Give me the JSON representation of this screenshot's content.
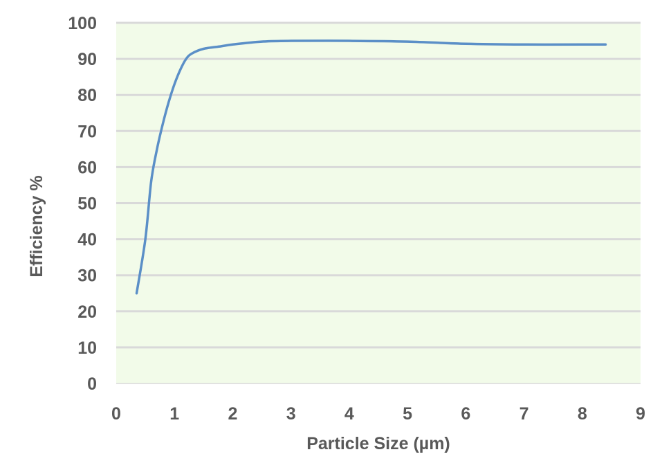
{
  "chart_data": {
    "type": "line",
    "title": "",
    "xlabel": "Particle Size (µm)",
    "ylabel": "Efficiency %",
    "xlim": [
      0,
      9
    ],
    "ylim": [
      0,
      100
    ],
    "xticks": [
      "0",
      "1",
      "2",
      "3",
      "4",
      "5",
      "6",
      "7",
      "8",
      "9"
    ],
    "yticks": [
      "0",
      "10",
      "20",
      "30",
      "40",
      "50",
      "60",
      "70",
      "80",
      "90",
      "100"
    ],
    "grid": true,
    "legend": "none",
    "series": [
      {
        "color": "#5b8fc7",
        "smooth": true,
        "x": [
          0.35,
          0.5,
          0.6,
          0.7,
          0.8,
          0.9,
          1.0,
          1.1,
          1.2,
          1.3,
          1.5,
          1.8,
          2.0,
          2.5,
          3.0,
          4.0,
          5.0,
          6.0,
          7.0,
          8.0,
          8.4
        ],
        "y": [
          25,
          40,
          56,
          65,
          72,
          78,
          83,
          87,
          90,
          91.5,
          92.8,
          93.5,
          94,
          94.8,
          95,
          95,
          94.8,
          94.2,
          94,
          94,
          94
        ]
      }
    ]
  },
  "colors": {
    "plot_background": "#f2fbe9",
    "gridline": "#d9d9d9",
    "series": "#5b8fc7",
    "text": "#595959"
  }
}
